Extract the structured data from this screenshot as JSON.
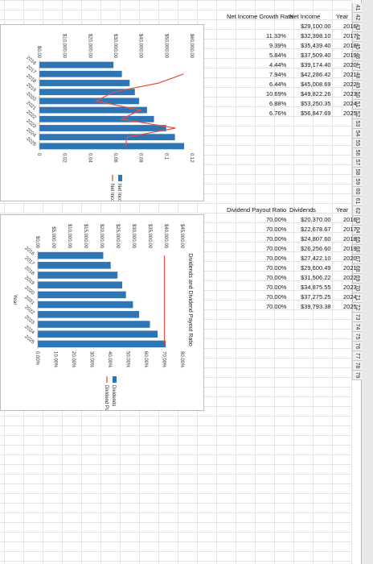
{
  "row_numbers": [
    "41",
    "42",
    "43",
    "44",
    "45",
    "46",
    "47",
    "48",
    "49",
    "50",
    "51",
    "52",
    "53",
    "54",
    "55",
    "56",
    "57",
    "58",
    "59",
    "60",
    "61",
    "62",
    "63",
    "64",
    "65",
    "66",
    "67",
    "68",
    "69",
    "70",
    "71",
    "72",
    "73",
    "74",
    "75",
    "76",
    "77",
    "78",
    "79"
  ],
  "table1": {
    "headers": [
      "Year",
      "Net Income",
      "Net Income Growth Rate"
    ],
    "rows": [
      [
        "2016",
        "$29,100.00",
        ""
      ],
      [
        "2017",
        "$32,398.10",
        "11.33%"
      ],
      [
        "2018",
        "$35,439.40",
        "9.39%"
      ],
      [
        "2019",
        "$37,509.40",
        "5.84%"
      ],
      [
        "2020",
        "$39,174.40",
        "4.44%"
      ],
      [
        "2021",
        "$42,286.42",
        "7.94%"
      ],
      [
        "2022",
        "$45,008.69",
        "6.44%"
      ],
      [
        "2023",
        "$49,822.26",
        "10.69%"
      ],
      [
        "2024",
        "$53,250.35",
        "6.88%"
      ],
      [
        "2025",
        "$56,847.69",
        "6.76%"
      ]
    ]
  },
  "table2": {
    "headers": [
      "Year",
      "Dividends",
      "Dividend Payout Ratio"
    ],
    "rows": [
      [
        "2016",
        "$20,370.00",
        "70.00%"
      ],
      [
        "2017",
        "$22,678.67",
        "70.00%"
      ],
      [
        "2018",
        "$24,807.60",
        "70.00%"
      ],
      [
        "2019",
        "$26,256.60",
        "70.00%"
      ],
      [
        "2020",
        "$27,422.10",
        "70.00%"
      ],
      [
        "2021",
        "$29,600.49",
        "70.00%"
      ],
      [
        "2022",
        "$31,506.22",
        "70.00%"
      ],
      [
        "2023",
        "$34,875.55",
        "70.00%"
      ],
      [
        "2024",
        "$37,275.25",
        "70.00%"
      ],
      [
        "2025",
        "$39,793.38",
        "70.00%"
      ]
    ]
  },
  "chart_data": [
    {
      "type": "bar",
      "title": "",
      "categories": [
        "2016",
        "2017",
        "2018",
        "2019",
        "2020",
        "2021",
        "2022",
        "2023",
        "2024",
        "2025"
      ],
      "series": [
        {
          "name": "Net Income",
          "type": "bar",
          "axis": "left",
          "values": [
            29100.0,
            32398.1,
            35439.4,
            37509.4,
            39174.4,
            42286.42,
            45008.69,
            49822.26,
            53250.35,
            56847.69
          ]
        },
        {
          "name": "Net Income Growth Rate",
          "type": "line",
          "axis": "right",
          "values": [
            null,
            0.1133,
            0.0939,
            0.0584,
            0.0444,
            0.0794,
            0.0644,
            0.1069,
            0.0688,
            0.0676
          ]
        }
      ],
      "left_ticks": [
        "$0.00",
        "$10,000.00",
        "$20,000.00",
        "$30,000.00",
        "$40,000.00",
        "$50,000.00",
        "$60,000.00"
      ],
      "right_ticks": [
        "0",
        "0.02",
        "0.04",
        "0.06",
        "0.08",
        "0.1",
        "0.12"
      ],
      "ylim_left": [
        0,
        60000
      ],
      "ylim_right": [
        0,
        0.12
      ],
      "xlabel": "",
      "legend_position": "right",
      "grid": false,
      "colors": {
        "bars": "#2e75b6",
        "line": "#e8503a"
      }
    },
    {
      "type": "bar",
      "title": "Dividends and Dividend Payout Ratio",
      "categories": [
        "2016",
        "2017",
        "2018",
        "2019",
        "2020",
        "2021",
        "2022",
        "2023",
        "2024",
        "2025"
      ],
      "series": [
        {
          "name": "Dividends",
          "type": "bar",
          "axis": "left",
          "values": [
            20370.0,
            22678.67,
            24807.6,
            26256.6,
            27422.1,
            29600.49,
            31506.22,
            34875.55,
            37275.25,
            39793.38
          ]
        },
        {
          "name": "Dividend Payout Ratio",
          "type": "line",
          "axis": "right",
          "values": [
            0.7,
            0.7,
            0.7,
            0.7,
            0.7,
            0.7,
            0.7,
            0.7,
            0.7,
            0.7
          ]
        }
      ],
      "left_ticks": [
        "$0.00",
        "$5,000.00",
        "$10,000.00",
        "$15,000.00",
        "$20,000.00",
        "$25,000.00",
        "$30,000.00",
        "$35,000.00",
        "$40,000.00",
        "$45,000.00"
      ],
      "right_ticks": [
        "0.00%",
        "10.00%",
        "20.00%",
        "30.00%",
        "40.00%",
        "50.00%",
        "60.00%",
        "70.00%",
        "80.00%"
      ],
      "ylim_left": [
        0,
        45000
      ],
      "ylim_right": [
        0,
        0.8
      ],
      "xlabel": "Year",
      "legend_position": "right",
      "grid": false,
      "colors": {
        "bars": "#2e75b6",
        "line": "#e8503a"
      }
    }
  ]
}
